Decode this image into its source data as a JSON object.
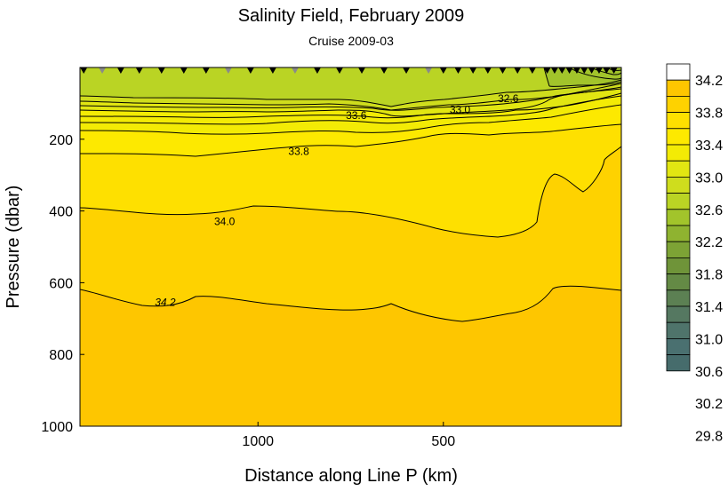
{
  "chart_data": {
    "type": "heatmap",
    "title": "Salinity Field,  February 2009",
    "subtitle": "Cruise 2009-03",
    "xlabel": "Distance along Line P  (km)",
    "ylabel": "Pressure  (dbar)",
    "x_reversed": true,
    "xlim": [
      1480,
      20
    ],
    "ylim": [
      1000,
      0
    ],
    "x_ticks": [
      1000,
      500
    ],
    "x_tick_labels": [
      "1000",
      "500"
    ],
    "y_ticks": [
      200,
      400,
      600,
      800,
      1000
    ],
    "y_tick_labels": [
      "200",
      "400",
      "600",
      "800",
      "1000"
    ],
    "stations_km": [
      1470,
      1420,
      1370,
      1320,
      1260,
      1200,
      1140,
      1080,
      1020,
      960,
      900,
      840,
      780,
      720,
      660,
      600,
      540,
      500,
      460,
      420,
      380,
      340,
      300,
      260,
      220,
      200,
      180,
      160,
      140,
      120,
      100,
      80,
      60,
      40
    ],
    "contour_labels": [
      {
        "text": "32.6",
        "x": 325,
        "y": 87
      },
      {
        "text": "33.0",
        "x": 455,
        "y": 117
      },
      {
        "text": "33.6",
        "x": 735,
        "y": 134
      },
      {
        "text": "33.8",
        "x": 890,
        "y": 234
      },
      {
        "text": "34.0",
        "x": 1090,
        "y": 430
      },
      {
        "text": "34.2",
        "x": 1250,
        "y": 655
      }
    ],
    "colorbar": {
      "levels": [
        "34.2",
        "33.8",
        "33.4",
        "33.0",
        "32.6",
        "32.2",
        "31.8",
        "31.4",
        "31.0",
        "30.6",
        "30.2",
        "29.8"
      ],
      "colors": [
        "#ffffff",
        "#fec600",
        "#fed200",
        "#fee000",
        "#fde900",
        "#f3eb05",
        "#e2e612",
        "#cfdd1d",
        "#bad424",
        "#a2c42b",
        "#8fb330",
        "#7da335",
        "#6f9439",
        "#648a45",
        "#5c8053",
        "#557861",
        "#4f746b",
        "#4a7070",
        "#466c6c"
      ]
    }
  }
}
